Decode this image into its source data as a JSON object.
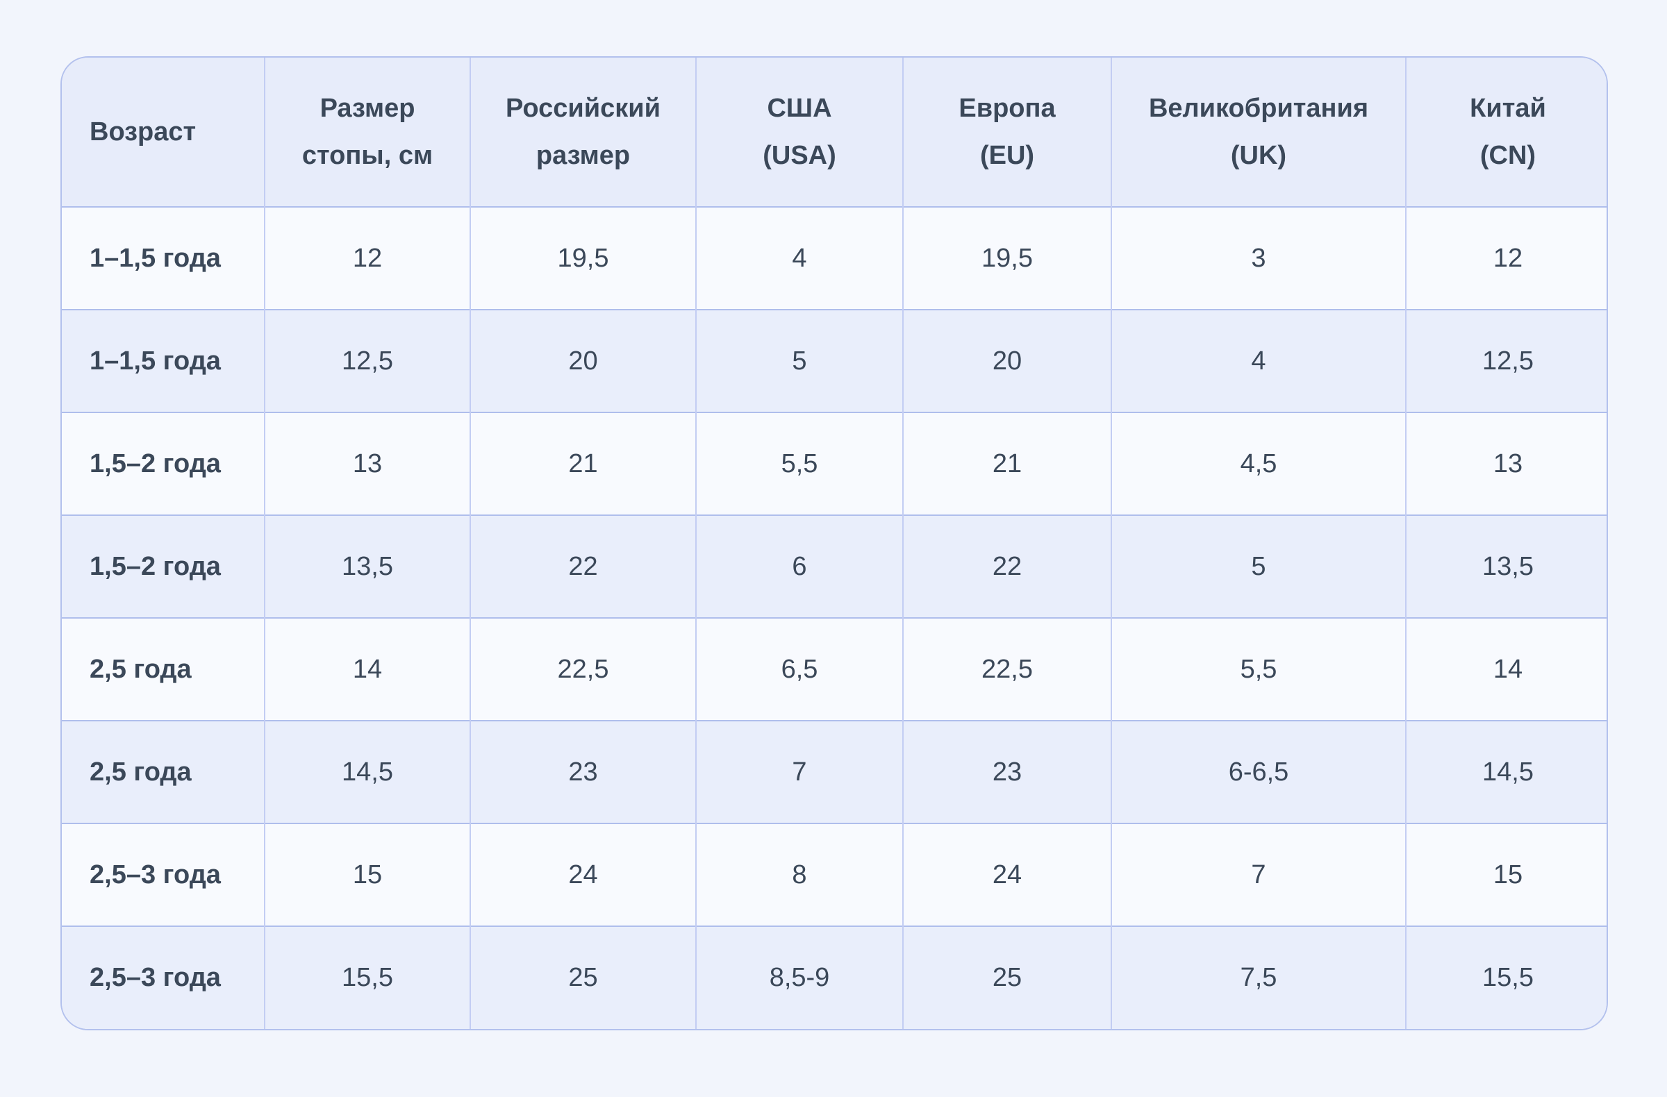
{
  "chart_data": {
    "type": "table",
    "columns": [
      {
        "key": "age",
        "label": "Возраст"
      },
      {
        "key": "foot-size-cm",
        "label": "Размер\nстопы, см"
      },
      {
        "key": "ru-size",
        "label": "Российский\nразмер"
      },
      {
        "key": "usa",
        "label": "США\n(USA)"
      },
      {
        "key": "eu",
        "label": "Европа\n(EU)"
      },
      {
        "key": "uk",
        "label": "Великобритания\n(UK)"
      },
      {
        "key": "cn",
        "label": "Китай\n(CN)"
      }
    ],
    "rows": [
      [
        "1–1,5 года",
        "12",
        "19,5",
        "4",
        "19,5",
        "3",
        "12"
      ],
      [
        "1–1,5 года",
        "12,5",
        "20",
        "5",
        "20",
        "4",
        "12,5"
      ],
      [
        "1,5–2 года",
        "13",
        "21",
        "5,5",
        "21",
        "4,5",
        "13"
      ],
      [
        "1,5–2 года",
        "13,5",
        "22",
        "6",
        "22",
        "5",
        "13,5"
      ],
      [
        "2,5 года",
        "14",
        "22,5",
        "6,5",
        "22,5",
        "5,5",
        "14"
      ],
      [
        "2,5 года",
        "14,5",
        "23",
        "7",
        "23",
        "6-6,5",
        "14,5"
      ],
      [
        "2,5–3 года",
        "15",
        "24",
        "8",
        "24",
        "7",
        "15"
      ],
      [
        "2,5–3 года",
        "15,5",
        "25",
        "8,5-9",
        "25",
        "7,5",
        "15,5"
      ]
    ],
    "layout": {
      "grid": "on",
      "header_position": "top",
      "row_striping": "odd-light-even-blue"
    }
  },
  "colors": {
    "page_background": "#F2F5FC",
    "header_background": "#E7ECFA",
    "row_odd_background": "#F8FAFE",
    "row_even_background": "#E9EEFB",
    "border_outer": "#B3C1ED",
    "border_vertical": "#C3CDF3",
    "border_horizontal": "#AFBEEC",
    "text": "#3B4859"
  }
}
